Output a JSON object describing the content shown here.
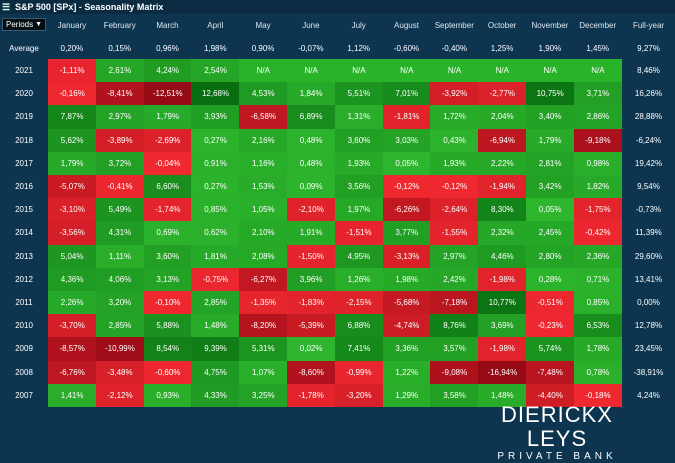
{
  "title": "S&P 500 [SPx] - Seasonality Matrix",
  "periods_label": "Periods",
  "months": [
    "January",
    "February",
    "March",
    "April",
    "May",
    "June",
    "July",
    "August",
    "September",
    "October",
    "November",
    "December"
  ],
  "fullyear_header": "Full-year",
  "average": {
    "label": "Average",
    "values": [
      "0,20%",
      "0,15%",
      "0,96%",
      "1,98%",
      "0,90%",
      "-0,07%",
      "1,12%",
      "-0,60%",
      "-0,40%",
      "1,25%",
      "1,90%",
      "1,45%"
    ],
    "full": "9,27%"
  },
  "rows": [
    {
      "year": "2021",
      "values": [
        "-1,11%",
        "2,61%",
        "4,24%",
        "2,54%",
        "N/A",
        "N/A",
        "N/A",
        "N/A",
        "N/A",
        "N/A",
        "N/A",
        "N/A"
      ],
      "full": "8,46%"
    },
    {
      "year": "2020",
      "values": [
        "-0,16%",
        "-8,41%",
        "-12,51%",
        "12,68%",
        "4,53%",
        "1,84%",
        "5,51%",
        "7,01%",
        "-3,92%",
        "-2,77%",
        "10,75%",
        "3,71%"
      ],
      "full": "16,26%"
    },
    {
      "year": "2019",
      "values": [
        "7,87%",
        "2,97%",
        "1,79%",
        "3,93%",
        "-6,58%",
        "6,89%",
        "1,31%",
        "-1,81%",
        "1,72%",
        "2,04%",
        "3,40%",
        "2,86%"
      ],
      "full": "28,88%"
    },
    {
      "year": "2018",
      "values": [
        "5,62%",
        "-3,89%",
        "-2,69%",
        "0,27%",
        "2,16%",
        "0,48%",
        "3,60%",
        "3,03%",
        "0,43%",
        "-6,94%",
        "1,79%",
        "-9,18%"
      ],
      "full": "-6,24%"
    },
    {
      "year": "2017",
      "values": [
        "1,79%",
        "3,72%",
        "-0,04%",
        "0,91%",
        "1,16%",
        "0,48%",
        "1,93%",
        "0,05%",
        "1,93%",
        "2,22%",
        "2,81%",
        "0,98%"
      ],
      "full": "19,42%"
    },
    {
      "year": "2016",
      "values": [
        "-5,07%",
        "-0,41%",
        "6,60%",
        "0,27%",
        "1,53%",
        "0,09%",
        "3,56%",
        "-0,12%",
        "-0,12%",
        "-1,94%",
        "3,42%",
        "1,82%"
      ],
      "full": "9,54%"
    },
    {
      "year": "2015",
      "values": [
        "-3,10%",
        "5,49%",
        "-1,74%",
        "0,85%",
        "1,05%",
        "-2,10%",
        "1,97%",
        "-6,26%",
        "-2,64%",
        "8,30%",
        "0,05%",
        "-1,75%"
      ],
      "full": "-0,73%"
    },
    {
      "year": "2014",
      "values": [
        "-3,56%",
        "4,31%",
        "0,69%",
        "0,62%",
        "2,10%",
        "1,91%",
        "-1,51%",
        "3,77%",
        "-1,55%",
        "2,32%",
        "2,45%",
        "-0,42%"
      ],
      "full": "11,39%"
    },
    {
      "year": "2013",
      "values": [
        "5,04%",
        "1,11%",
        "3,60%",
        "1,81%",
        "2,08%",
        "-1,50%",
        "4,95%",
        "-3,13%",
        "2,97%",
        "4,46%",
        "2,80%",
        "2,36%"
      ],
      "full": "29,60%"
    },
    {
      "year": "2012",
      "values": [
        "4,36%",
        "4,06%",
        "3,13%",
        "-0,75%",
        "-6,27%",
        "3,96%",
        "1,26%",
        "1,98%",
        "2,42%",
        "-1,98%",
        "0,28%",
        "0,71%"
      ],
      "full": "13,41%"
    },
    {
      "year": "2011",
      "values": [
        "2,26%",
        "3,20%",
        "-0,10%",
        "2,85%",
        "-1,35%",
        "-1,83%",
        "-2,15%",
        "-5,68%",
        "-7,18%",
        "10,77%",
        "-0,51%",
        "0,85%"
      ],
      "full": "0,00%"
    },
    {
      "year": "2010",
      "values": [
        "-3,70%",
        "2,85%",
        "5,88%",
        "1,48%",
        "-8,20%",
        "-5,39%",
        "6,88%",
        "-4,74%",
        "8,76%",
        "3,69%",
        "-0,23%",
        "6,53%"
      ],
      "full": "12,78%"
    },
    {
      "year": "2009",
      "values": [
        "-8,57%",
        "-10,99%",
        "8,54%",
        "9,39%",
        "5,31%",
        "0,02%",
        "7,41%",
        "3,36%",
        "3,57%",
        "-1,98%",
        "5,74%",
        "1,78%"
      ],
      "full": "23,45%"
    },
    {
      "year": "2008",
      "values": [
        "-6,76%",
        "-3,48%",
        "-0,60%",
        "4,75%",
        "1,07%",
        "-8,60%",
        "-0,99%",
        "1,22%",
        "-9,08%",
        "-16,94%",
        "-7,48%",
        "0,78%"
      ],
      "full": "-38,91%"
    },
    {
      "year": "2007",
      "values": [
        "1,41%",
        "-2,12%",
        "0,93%",
        "4,33%",
        "3,25%",
        "-1,78%",
        "-3,20%",
        "1,29%",
        "3,58%",
        "1,48%",
        "-4,40%",
        "-0,18%"
      ],
      "full": "4,24%"
    }
  ],
  "brand": {
    "line1": "DIERICKX LEYS",
    "line2": "PRIVATE BANK"
  },
  "colors": {
    "bg": "#0d3550",
    "pos_light": "#2db52d",
    "pos_dark": "#0b7a12",
    "neg_light": "#f0252f",
    "neg_dark": "#a8101a",
    "na": "#29b329"
  }
}
